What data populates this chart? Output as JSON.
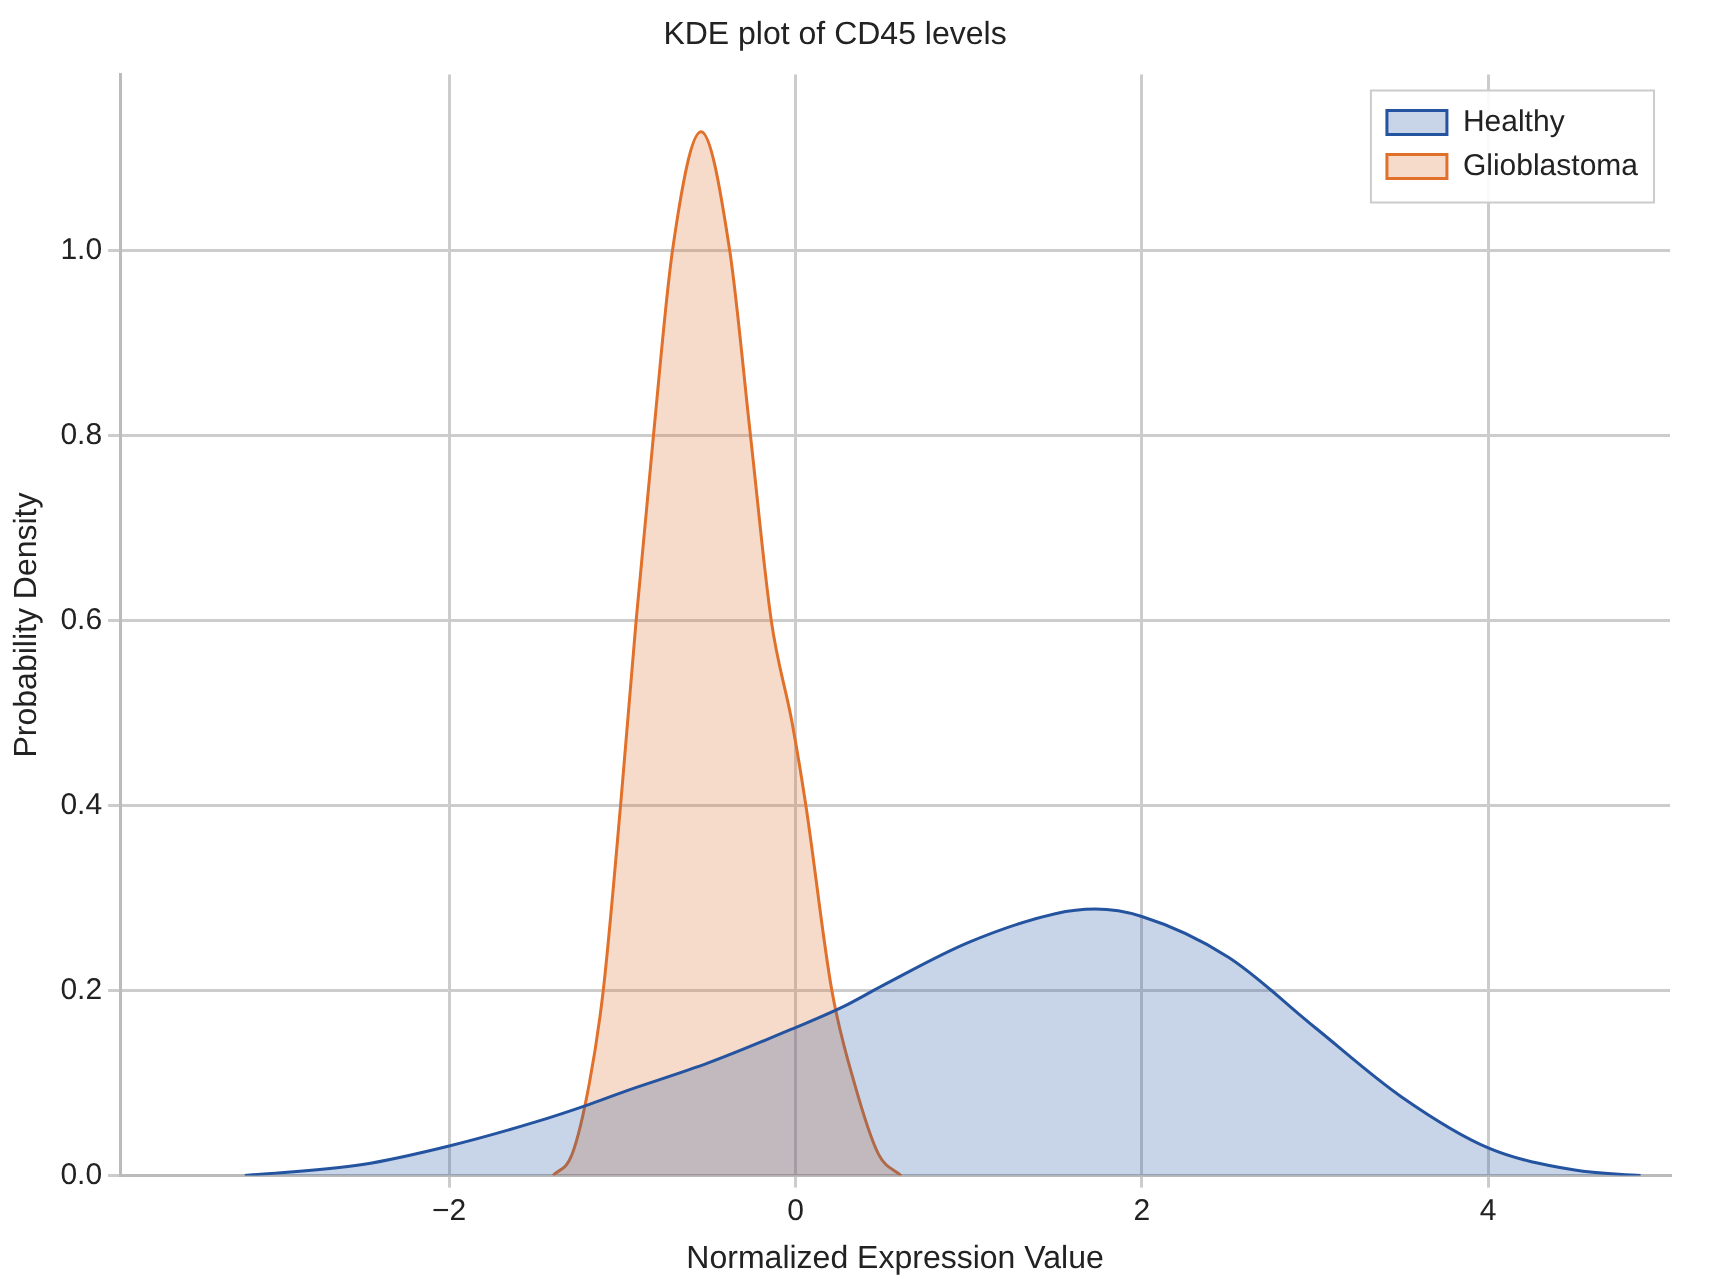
{
  "chart_data": {
    "type": "area",
    "title": "KDE plot of CD45 levels",
    "xlabel": "Normalized Expression Value",
    "ylabel": "Probability Density",
    "xlim": [
      -3.9,
      5.05
    ],
    "ylim": [
      0,
      1.19
    ],
    "xticks": [
      -2,
      0,
      2,
      4
    ],
    "yticks": [
      {
        "value": 0,
        "label": "0.0"
      },
      0.2,
      0.4,
      0.6,
      0.8,
      {
        "value": 1,
        "label": "1.0"
      }
    ],
    "grid": true,
    "legend": "top right",
    "series": [
      {
        "name": "Healthy",
        "color": "#2453a0",
        "x": [
          -3.18,
          -2.5,
          -2,
          -1.5,
          -1.19,
          -1,
          -0.5,
          0,
          0.27,
          0.5,
          1,
          1.5,
          1.73,
          2,
          2.5,
          3,
          3.5,
          4,
          4.5,
          4.88
        ],
        "values": [
          0,
          0.012,
          0.032,
          0.058,
          0.077,
          0.09,
          0.122,
          0.16,
          0.182,
          0.205,
          0.252,
          0.283,
          0.288,
          0.28,
          0.236,
          0.16,
          0.085,
          0.03,
          0.006,
          0
        ]
      },
      {
        "name": "Glioblastoma",
        "color": "#e0702a",
        "x": [
          -1.4,
          -1.29,
          -1.19,
          -1.11,
          -1.01,
          -0.92,
          -0.82,
          -0.71,
          -0.545,
          -0.38,
          -0.26,
          -0.14,
          -0.02,
          0.06,
          0.21,
          0.34,
          0.48,
          0.61
        ],
        "values": [
          0,
          0.023,
          0.1,
          0.2,
          0.4,
          0.6,
          0.8,
          1.0,
          1.128,
          1.0,
          0.8,
          0.6,
          0.49,
          0.4,
          0.2,
          0.1,
          0.023,
          0
        ]
      }
    ]
  }
}
